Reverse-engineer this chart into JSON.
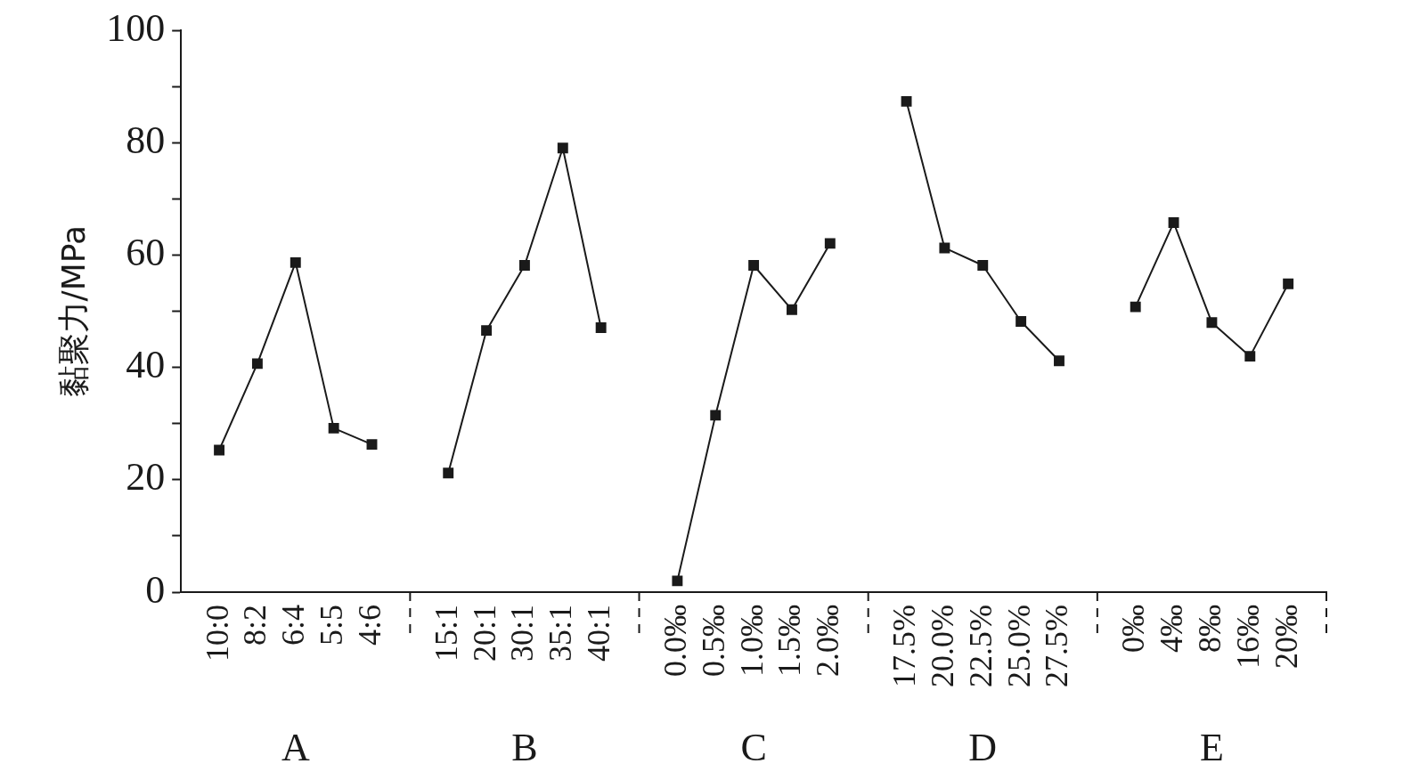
{
  "chart_data": {
    "type": "line",
    "ylabel": "黏聚力/MPa",
    "categories": [
      null,
      "10:0",
      "8:2",
      "6:4",
      "5:5",
      "4:6",
      null,
      "15:1",
      "20:1",
      "30:1",
      "35:1",
      "40:1",
      null,
      "0.0‰",
      "0.5‰",
      "1.0‰",
      "1.5‰",
      "2.0‰",
      null,
      "17.5%",
      "20.0%",
      "22.5%",
      "25.0%",
      "27.5%",
      null,
      "0‰",
      "4‰",
      "8‰",
      "16‰",
      "20‰",
      null
    ],
    "series": [
      {
        "color": "#1a1a1a",
        "values": [
          null,
          25.3,
          40.7,
          58.7,
          29.2,
          26.3,
          null,
          21.2,
          46.6,
          58.2,
          79.1,
          47.1,
          null,
          2.0,
          31.5,
          58.2,
          50.3,
          62.1,
          null,
          87.4,
          61.3,
          58.2,
          48.2,
          41.2,
          null,
          50.8,
          65.8,
          48.0,
          42.0,
          54.9,
          null
        ]
      }
    ],
    "annotations": [
      "A",
      "B",
      "C",
      "D",
      "E"
    ],
    "ylim": [
      0,
      100
    ],
    "yticks": [
      0,
      {
        "value": 10,
        "label": null
      },
      20,
      {
        "value": 30,
        "label": null
      },
      40,
      {
        "value": 50,
        "label": null
      },
      60,
      {
        "value": 70,
        "label": null
      },
      80,
      {
        "value": 90,
        "label": null
      },
      100
    ],
    "grid": false,
    "legend": false,
    "marker": "square",
    "line_style": "solid"
  }
}
